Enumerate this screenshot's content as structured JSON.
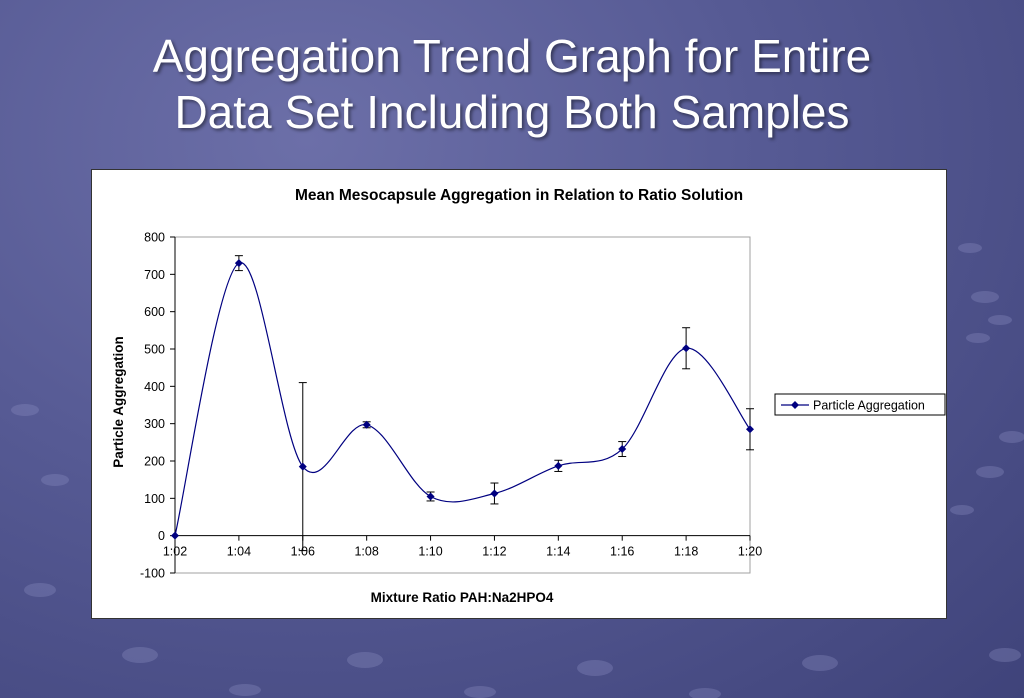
{
  "slide": {
    "title_line1": "Aggregation Trend Graph for Entire",
    "title_line2": "Data Set Including Both Samples"
  },
  "colors": {
    "series": "#000080",
    "error_bar": "#000000",
    "plot_border": "#a0a0a0"
  },
  "chart_data": {
    "type": "line",
    "title": "Mean Mesocapsule Aggregation in Relation to Ratio Solution",
    "xlabel": "Mixture Ratio PAH:Na2HPO4",
    "ylabel": "Particle Aggregation",
    "categories": [
      "1:02",
      "1:04",
      "1:06",
      "1:08",
      "1:10",
      "1:12",
      "1:14",
      "1:16",
      "1:18",
      "1:20"
    ],
    "yticks": [
      "-100",
      "0",
      "100",
      "200",
      "300",
      "400",
      "500",
      "600",
      "700",
      "800"
    ],
    "ylim": [
      -100,
      800
    ],
    "grid": false,
    "smoothed": true,
    "legend_position": "right",
    "series": [
      {
        "name": "Particle Aggregation",
        "marker": "diamond",
        "values": [
          0,
          730,
          185,
          297,
          105,
          113,
          187,
          232,
          502,
          285
        ],
        "error": [
          0,
          20,
          225,
          8,
          12,
          28,
          15,
          20,
          55,
          55
        ]
      }
    ]
  }
}
